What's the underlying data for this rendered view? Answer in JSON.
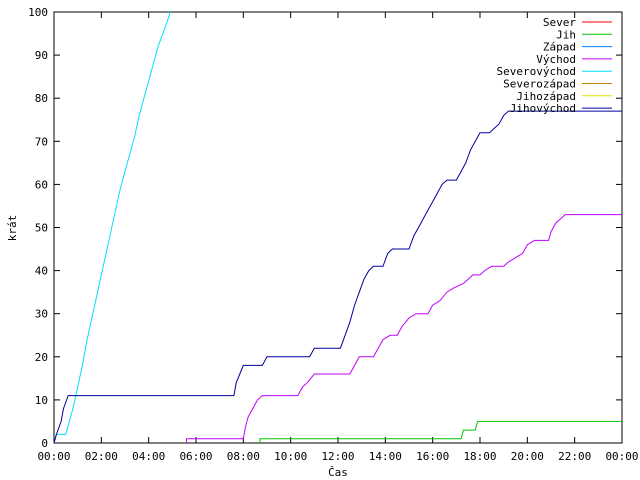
{
  "chart_data": {
    "type": "line",
    "xlabel": "Čas",
    "ylabel": "krát",
    "xlim": [
      0,
      24
    ],
    "ylim": [
      0,
      100
    ],
    "x_ticks": [
      {
        "value": 0,
        "label": "00:00"
      },
      {
        "value": 2,
        "label": "02:00"
      },
      {
        "value": 4,
        "label": "04:00"
      },
      {
        "value": 6,
        "label": "06:00"
      },
      {
        "value": 8,
        "label": "08:00"
      },
      {
        "value": 10,
        "label": "10:00"
      },
      {
        "value": 12,
        "label": "12:00"
      },
      {
        "value": 14,
        "label": "14:00"
      },
      {
        "value": 16,
        "label": "16:00"
      },
      {
        "value": 18,
        "label": "18:00"
      },
      {
        "value": 20,
        "label": "20:00"
      },
      {
        "value": 22,
        "label": "22:00"
      },
      {
        "value": 24,
        "label": "00:00"
      }
    ],
    "y_ticks": [
      0,
      10,
      20,
      30,
      40,
      50,
      60,
      70,
      80,
      90,
      100
    ],
    "grid": false,
    "legend_position": "top-right",
    "series": [
      {
        "name": "Sever",
        "color": "#ff0000",
        "points": []
      },
      {
        "name": "Jih",
        "color": "#00c000",
        "points": [
          [
            8.7,
            0
          ],
          [
            8.7,
            1
          ],
          [
            17.2,
            1
          ],
          [
            17.3,
            3
          ],
          [
            17.8,
            3
          ],
          [
            17.9,
            5
          ],
          [
            24,
            5
          ]
        ]
      },
      {
        "name": "Západ",
        "color": "#0080ff",
        "points": []
      },
      {
        "name": "Východ",
        "color": "#c000ff",
        "points": [
          [
            5.6,
            0
          ],
          [
            5.6,
            1
          ],
          [
            8.0,
            1
          ],
          [
            8.1,
            4
          ],
          [
            8.2,
            6
          ],
          [
            8.4,
            8
          ],
          [
            8.6,
            10
          ],
          [
            8.8,
            11
          ],
          [
            10.3,
            11
          ],
          [
            10.5,
            13
          ],
          [
            10.7,
            14
          ],
          [
            11.0,
            16
          ],
          [
            12.5,
            16
          ],
          [
            12.7,
            18
          ],
          [
            12.9,
            20
          ],
          [
            13.5,
            20
          ],
          [
            13.7,
            22
          ],
          [
            13.9,
            24
          ],
          [
            14.2,
            25
          ],
          [
            14.5,
            25
          ],
          [
            14.7,
            27
          ],
          [
            15.0,
            29
          ],
          [
            15.3,
            30
          ],
          [
            15.8,
            30
          ],
          [
            16.0,
            32
          ],
          [
            16.3,
            33
          ],
          [
            16.6,
            35
          ],
          [
            16.9,
            36
          ],
          [
            17.3,
            37
          ],
          [
            17.5,
            38
          ],
          [
            17.7,
            39
          ],
          [
            18.0,
            39
          ],
          [
            18.2,
            40
          ],
          [
            18.5,
            41
          ],
          [
            19.0,
            41
          ],
          [
            19.2,
            42
          ],
          [
            19.5,
            43
          ],
          [
            19.8,
            44
          ],
          [
            20.0,
            46
          ],
          [
            20.3,
            47
          ],
          [
            20.9,
            47
          ],
          [
            21.0,
            49
          ],
          [
            21.2,
            51
          ],
          [
            21.4,
            52
          ],
          [
            21.6,
            53
          ],
          [
            24,
            53
          ]
        ]
      },
      {
        "name": "Severovýchod",
        "color": "#00e0ff",
        "points": [
          [
            0,
            0
          ],
          [
            0.05,
            1
          ],
          [
            0.1,
            2
          ],
          [
            0.5,
            2
          ],
          [
            0.6,
            4
          ],
          [
            0.8,
            8
          ],
          [
            1.0,
            13
          ],
          [
            1.2,
            18
          ],
          [
            1.4,
            24
          ],
          [
            1.6,
            29
          ],
          [
            1.8,
            34
          ],
          [
            2.0,
            39
          ],
          [
            2.2,
            44
          ],
          [
            2.4,
            49
          ],
          [
            2.6,
            54
          ],
          [
            2.8,
            59
          ],
          [
            3.0,
            63
          ],
          [
            3.2,
            67
          ],
          [
            3.4,
            71
          ],
          [
            3.6,
            76
          ],
          [
            3.8,
            80
          ],
          [
            4.0,
            84
          ],
          [
            4.2,
            88
          ],
          [
            4.4,
            92
          ],
          [
            4.6,
            95
          ],
          [
            4.8,
            98
          ],
          [
            4.9,
            100
          ]
        ]
      },
      {
        "name": "Severozápad",
        "color": "#c08000",
        "points": []
      },
      {
        "name": "Jihozápad",
        "color": "#e0e000",
        "points": []
      },
      {
        "name": "Jihovýchod",
        "color": "#0000a0",
        "points": [
          [
            0,
            0
          ],
          [
            0.1,
            2
          ],
          [
            0.3,
            5
          ],
          [
            0.4,
            8
          ],
          [
            0.6,
            11
          ],
          [
            7.6,
            11
          ],
          [
            7.7,
            14
          ],
          [
            7.85,
            16
          ],
          [
            8.0,
            18
          ],
          [
            8.8,
            18
          ],
          [
            9.0,
            20
          ],
          [
            10.8,
            20
          ],
          [
            11.0,
            22
          ],
          [
            12.1,
            22
          ],
          [
            12.3,
            25
          ],
          [
            12.5,
            28
          ],
          [
            12.7,
            32
          ],
          [
            12.9,
            35
          ],
          [
            13.1,
            38
          ],
          [
            13.3,
            40
          ],
          [
            13.5,
            41
          ],
          [
            13.9,
            41
          ],
          [
            14.1,
            44
          ],
          [
            14.3,
            45
          ],
          [
            15.0,
            45
          ],
          [
            15.2,
            48
          ],
          [
            15.4,
            50
          ],
          [
            15.6,
            52
          ],
          [
            15.8,
            54
          ],
          [
            16.0,
            56
          ],
          [
            16.2,
            58
          ],
          [
            16.4,
            60
          ],
          [
            16.6,
            61
          ],
          [
            17.0,
            61
          ],
          [
            17.2,
            63
          ],
          [
            17.4,
            65
          ],
          [
            17.6,
            68
          ],
          [
            17.8,
            70
          ],
          [
            18.0,
            72
          ],
          [
            18.4,
            72
          ],
          [
            18.6,
            73
          ],
          [
            18.8,
            74
          ],
          [
            19.0,
            76
          ],
          [
            19.2,
            77
          ],
          [
            24,
            77
          ]
        ]
      }
    ]
  }
}
